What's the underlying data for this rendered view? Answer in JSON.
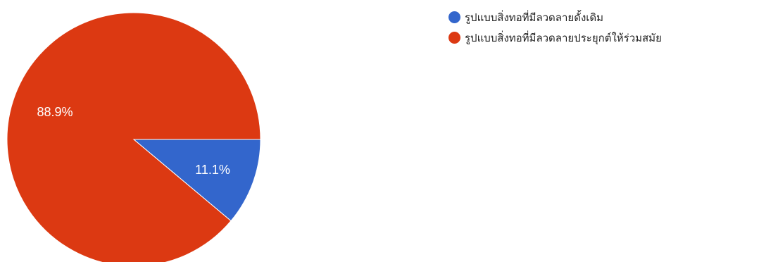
{
  "chart_data": {
    "type": "pie",
    "series": [
      {
        "name": "รูปแบบสิ่งทอที่มีลวดลายดั้งเดิม",
        "value": 11.1,
        "label": "11.1%",
        "color": "#3366cc"
      },
      {
        "name": "รูปแบบสิ่งทอที่มีลวดลายประยุกต์ให้ร่วมสมัย",
        "value": 88.9,
        "label": "88.9%",
        "color": "#dc3912"
      }
    ],
    "legend_position": "right",
    "start_angle_deg": 0,
    "direction": "clockwise"
  }
}
